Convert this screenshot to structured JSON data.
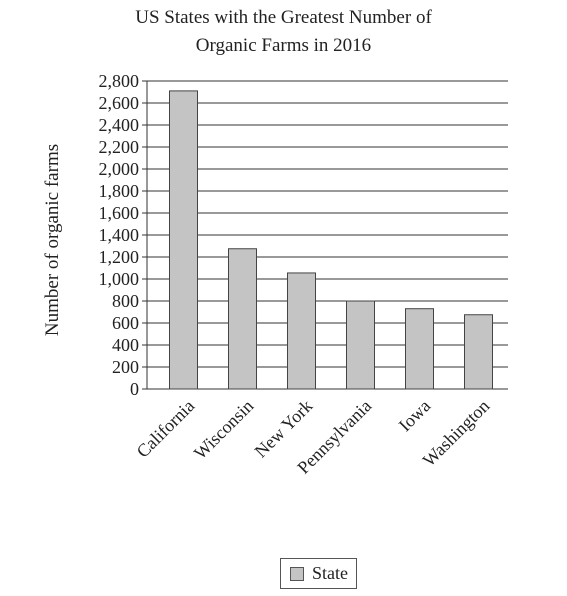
{
  "chart_data": {
    "type": "bar",
    "title_lines": [
      "US States with the Greatest Number of",
      "Organic Farms in 2016"
    ],
    "ylabel": "Number of organic farms",
    "xlabel": "",
    "categories": [
      "California",
      "Wisconsin",
      "New York",
      "Pennsylvania",
      "Iowa",
      "Washington"
    ],
    "series": [
      {
        "name": "State",
        "values": [
          2710,
          1275,
          1055,
          800,
          730,
          675
        ]
      }
    ],
    "ylim": [
      0,
      2800
    ],
    "yticks": [
      0,
      200,
      400,
      600,
      800,
      1000,
      1200,
      1400,
      1600,
      1800,
      2000,
      2200,
      2400,
      2600,
      2800
    ],
    "ytick_labels": [
      "0",
      "200",
      "400",
      "600",
      "800",
      "1,000",
      "1,200",
      "1,400",
      "1,600",
      "1,800",
      "2,000",
      "2,200",
      "2,400",
      "2,600",
      "2,800"
    ],
    "grid": true,
    "legend_position": "bottom-center",
    "colors": {
      "bar_fill": "#c4c4c4",
      "bar_stroke": "#444444",
      "grid": "#333333"
    }
  }
}
